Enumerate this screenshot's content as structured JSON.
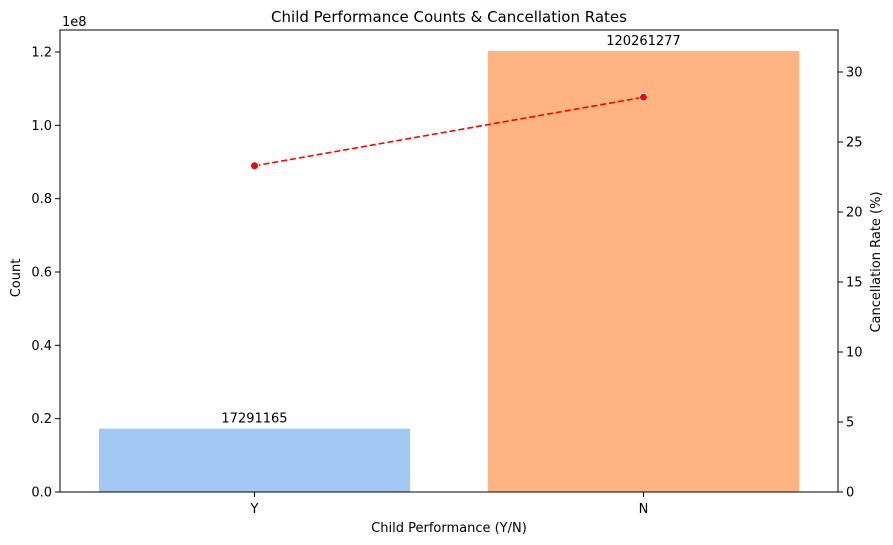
{
  "chart_data": {
    "type": "bar",
    "title": "Child Performance Counts & Cancellation Rates",
    "xlabel": "Child Performance (Y/N)",
    "ylabel": "Count",
    "y2label": "Cancellation Rate (%)",
    "y_offset_label": "1e8",
    "categories": [
      "Y",
      "N"
    ],
    "series": [
      {
        "type": "bar",
        "values": [
          17291165,
          120261277
        ],
        "colors": [
          "#a1c9f4",
          "#ffb482"
        ]
      },
      {
        "type": "line",
        "axis": "right",
        "values": [
          23.3,
          28.2
        ],
        "color": "#ff0000",
        "style": "dashed",
        "marker": "circle"
      }
    ],
    "data_labels": [
      "17291165",
      "120261277"
    ],
    "ylim": [
      0,
      126000000
    ],
    "y2lim": [
      0,
      33
    ],
    "yticks": [
      0.0,
      0.2,
      0.4,
      0.6,
      0.8,
      1.0,
      1.2
    ],
    "ytick_labels": [
      "0.0",
      "0.2",
      "0.4",
      "0.6",
      "0.8",
      "1.0",
      "1.2"
    ],
    "y_scale": 100000000,
    "y2ticks": [
      0,
      5,
      10,
      15,
      20,
      25,
      30
    ],
    "ytick2_labels": [
      "0",
      "5",
      "10",
      "15",
      "20",
      "25",
      "30"
    ],
    "grid": false,
    "legend": "none"
  }
}
